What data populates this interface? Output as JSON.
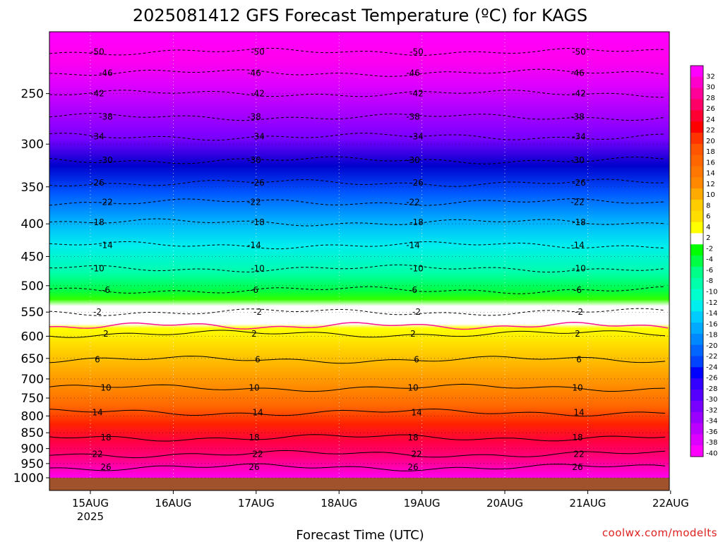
{
  "title": "2025081412 GFS Forecast Temperature (ºC) for KAGS",
  "credit": "coolwx.com/modelts",
  "chart_data": {
    "type": "heatmap",
    "title": "2025081412 GFS Forecast Temperature (ºC) for KAGS",
    "xlabel": "Forecast Time (UTC)",
    "ylabel": "",
    "x_tick_labels": [
      "15AUG",
      "16AUG",
      "17AUG",
      "18AUG",
      "19AUG",
      "20AUG",
      "21AUG",
      "22AUG"
    ],
    "x_tick_sublabel": "2025",
    "y_tick_labels": [
      "250",
      "300",
      "350",
      "400",
      "450",
      "500",
      "550",
      "600",
      "650",
      "700",
      "750",
      "800",
      "850",
      "900",
      "950",
      "1000"
    ],
    "y_axis": "pressure (log scale, reversed)",
    "ylim": [
      1000,
      200
    ],
    "colorbar": {
      "labels": [
        "32",
        "30",
        "28",
        "26",
        "24",
        "22",
        "20",
        "18",
        "16",
        "14",
        "12",
        "10",
        "8",
        "6",
        "4",
        "2",
        "-2",
        "-4",
        "-6",
        "-8",
        "-10",
        "-12",
        "-14",
        "-16",
        "-18",
        "-20",
        "-22",
        "-24",
        "-26",
        "-28",
        "-30",
        "-32",
        "-34",
        "-36",
        "-38",
        "-40"
      ],
      "colors": [
        "#ff00ff",
        "#ff00cc",
        "#ff0099",
        "#ff0066",
        "#ff0033",
        "#ff0000",
        "#ff3300",
        "#ff5500",
        "#ff6600",
        "#ff7700",
        "#ff8800",
        "#ffaa00",
        "#ffcc00",
        "#ffdd00",
        "#ffff00",
        "#ffffff",
        "#00ff00",
        "#00ff44",
        "#00ff88",
        "#00ffaa",
        "#00ffcc",
        "#00eeee",
        "#00ccff",
        "#00aaff",
        "#0088ff",
        "#0066ff",
        "#0044ff",
        "#0000ff",
        "#3300ff",
        "#5500ff",
        "#7700ff",
        "#9900ff",
        "#bb00ff",
        "#dd00ff",
        "#ff00ff"
      ]
    },
    "isotherm_levels": [
      {
        "label": "-50",
        "pressure": 215
      },
      {
        "label": "-46",
        "pressure": 232
      },
      {
        "label": "-42",
        "pressure": 250
      },
      {
        "label": "-38",
        "pressure": 272
      },
      {
        "label": "-34",
        "pressure": 292
      },
      {
        "label": "-30",
        "pressure": 318
      },
      {
        "label": "-26",
        "pressure": 345
      },
      {
        "label": "-22",
        "pressure": 370
      },
      {
        "label": "-18",
        "pressure": 398
      },
      {
        "label": "-14",
        "pressure": 432
      },
      {
        "label": "-10",
        "pressure": 470
      },
      {
        "label": "-6",
        "pressure": 508
      },
      {
        "label": "-2",
        "pressure": 550
      },
      {
        "label": "2",
        "pressure": 595
      },
      {
        "label": "6",
        "pressure": 653
      },
      {
        "label": "10",
        "pressure": 723
      },
      {
        "label": "14",
        "pressure": 790
      },
      {
        "label": "18",
        "pressure": 865
      },
      {
        "label": "22",
        "pressure": 918
      },
      {
        "label": "26",
        "pressure": 963
      }
    ],
    "freezing_level_pressure": 578,
    "grid": true
  }
}
